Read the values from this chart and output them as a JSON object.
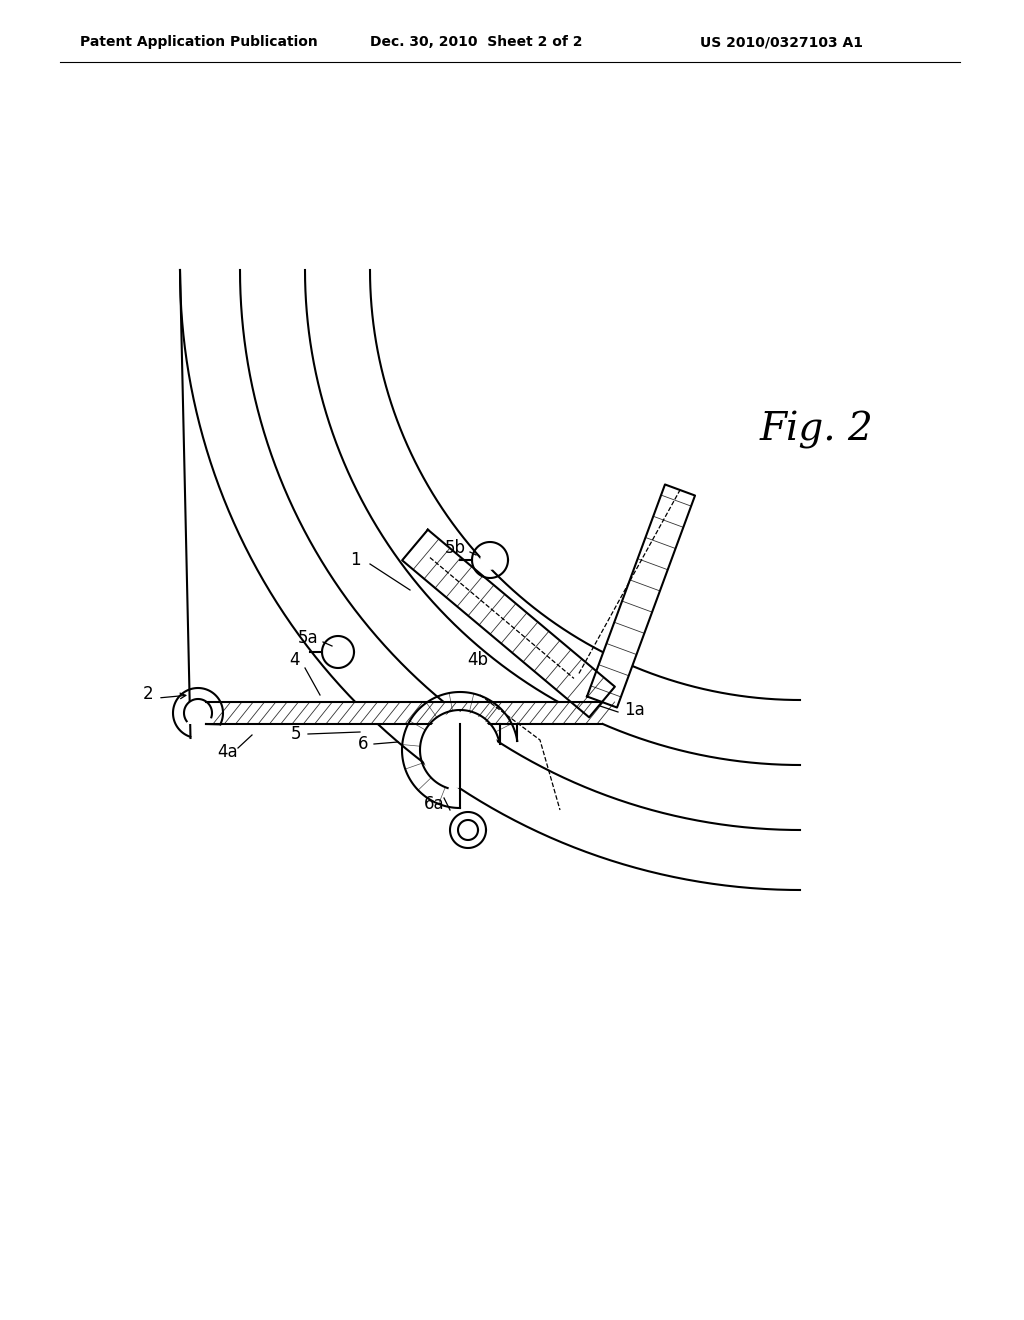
{
  "bg_color": "#ffffff",
  "line_color": "#000000",
  "header_text": "Patent Application Publication",
  "header_date": "Dec. 30, 2010  Sheet 2 of 2",
  "header_patent": "US 2010/0327103 A1",
  "fig_label": "Fig. 2"
}
